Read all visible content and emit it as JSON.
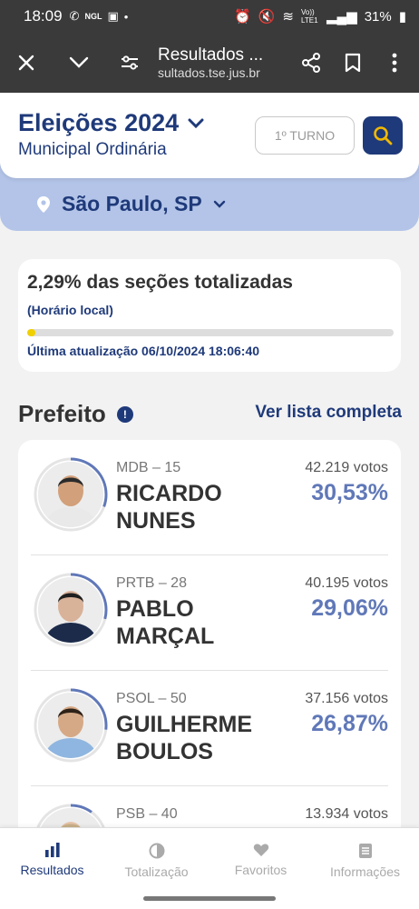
{
  "status_bar": {
    "time": "18:09",
    "left_icons": [
      "whatsapp-icon",
      "news-icon",
      "gallery-icon",
      "dot-icon"
    ],
    "network_label": "Vo)) LTE1",
    "battery": "31%"
  },
  "browser": {
    "title": "Resultados ...",
    "url": "sultados.tse.jus.br"
  },
  "header": {
    "title": "Eleições 2024",
    "subtitle": "Municipal Ordinária",
    "turno_label": "1º TURNO"
  },
  "location": {
    "label": "São Paulo, SP"
  },
  "progress": {
    "text": "2,29% das seções totalizadas",
    "note": "(Horário local)",
    "percent": 2.29,
    "last_update": "Última atualização 06/10/2024 18:06:40"
  },
  "section": {
    "title": "Prefeito",
    "see_all": "Ver lista completa"
  },
  "candidates": [
    {
      "party": "MDB – 15",
      "name_line1": "RICARDO",
      "name_line2": "NUNES",
      "votes": "42.219 votos",
      "percent": "30,53%",
      "ring": 30.53
    },
    {
      "party": "PRTB – 28",
      "name_line1": "PABLO",
      "name_line2": "MARÇAL",
      "votes": "40.195 votos",
      "percent": "29,06%",
      "ring": 29.06
    },
    {
      "party": "PSOL – 50",
      "name_line1": "GUILHERME",
      "name_line2": "BOULOS",
      "votes": "37.156 votos",
      "percent": "26,87%",
      "ring": 26.87
    },
    {
      "party": "PSB – 40",
      "name_line1": "",
      "name_line2": "",
      "votes": "13.934 votos",
      "percent": "",
      "ring": 10
    }
  ],
  "bottom_nav": [
    {
      "label": "Resultados",
      "icon": "bar-chart-icon",
      "active": true
    },
    {
      "label": "Totalização",
      "icon": "pie-chart-icon",
      "active": false
    },
    {
      "label": "Favoritos",
      "icon": "heart-icon",
      "active": false
    },
    {
      "label": "Informações",
      "icon": "document-icon",
      "active": false
    }
  ],
  "colors": {
    "primary": "#1f3a7a",
    "accent_percent": "#6078b8",
    "location_bg": "#b3c4e8",
    "progress_fill": "#f1d000"
  }
}
